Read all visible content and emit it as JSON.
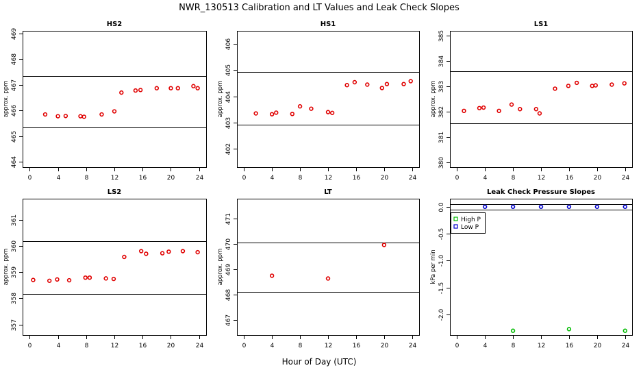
{
  "figure": {
    "title": "NWR_130513  Calibration and LT Values and Leak Check Slopes",
    "xlabel": "Hour of Day (UTC)"
  },
  "chart_data": [
    {
      "type": "scatter",
      "title": "HS2",
      "ylabel": "approx. ppm",
      "xlim": [
        -1,
        25
      ],
      "ylim": [
        463.8,
        469.1
      ],
      "xticks": [
        0,
        4,
        8,
        12,
        16,
        20,
        24
      ],
      "yticks": [
        464,
        465,
        466,
        467,
        468,
        469
      ],
      "ref_lines": [
        465.35,
        467.35
      ],
      "marker_color": "#e00000",
      "x": [
        2.2,
        4.0,
        5.1,
        7.2,
        7.7,
        10.2,
        12.0,
        13.0,
        15.0,
        15.7,
        18.0,
        20.0,
        21.0,
        23.2,
        23.8
      ],
      "y": [
        465.85,
        465.78,
        465.79,
        465.78,
        465.76,
        465.85,
        465.97,
        466.7,
        466.78,
        466.8,
        466.87,
        466.87,
        466.87,
        466.95,
        466.87
      ]
    },
    {
      "type": "scatter",
      "title": "HS1",
      "ylabel": "approx. ppm",
      "xlim": [
        -1,
        25
      ],
      "ylim": [
        401.3,
        406.5
      ],
      "xticks": [
        0,
        4,
        8,
        12,
        16,
        20,
        24
      ],
      "yticks": [
        402,
        403,
        404,
        405,
        406
      ],
      "ref_lines": [
        402.92,
        404.93
      ],
      "marker_color": "#e00000",
      "x": [
        1.7,
        4.0,
        4.6,
        6.9,
        8.0,
        9.6,
        12.0,
        12.6,
        14.7,
        15.8,
        17.6,
        19.7,
        20.4,
        22.8,
        23.8
      ],
      "y": [
        403.35,
        403.32,
        403.38,
        403.33,
        403.62,
        403.53,
        403.4,
        403.37,
        404.43,
        404.54,
        404.45,
        404.32,
        404.47,
        404.47,
        404.58
      ]
    },
    {
      "type": "scatter",
      "title": "LS1",
      "ylabel": "approx. ppm",
      "xlim": [
        -1,
        25
      ],
      "ylim": [
        379.8,
        385.2
      ],
      "xticks": [
        0,
        4,
        8,
        12,
        16,
        20,
        24
      ],
      "yticks": [
        380,
        381,
        382,
        383,
        384,
        385
      ],
      "ref_lines": [
        381.55,
        383.6
      ],
      "marker_color": "#e00000",
      "x": [
        1.0,
        3.2,
        3.8,
        6.0,
        7.8,
        9.0,
        11.3,
        11.8,
        14.0,
        15.9,
        17.1,
        19.3,
        19.8,
        22.1,
        23.9
      ],
      "y": [
        382.03,
        382.14,
        382.16,
        382.03,
        382.28,
        382.1,
        382.1,
        381.93,
        382.91,
        383.02,
        383.14,
        383.02,
        383.04,
        383.07,
        383.12
      ]
    },
    {
      "type": "scatter",
      "title": "LS2",
      "ylabel": "approx. ppm",
      "xlim": [
        -1,
        25
      ],
      "ylim": [
        356.6,
        361.8
      ],
      "xticks": [
        0,
        4,
        8,
        12,
        16,
        20,
        24
      ],
      "yticks": [
        357,
        358,
        359,
        360,
        361
      ],
      "ref_lines": [
        358.17,
        360.18
      ],
      "marker_color": "#e00000",
      "x": [
        0.5,
        2.8,
        3.9,
        5.6,
        7.9,
        8.5,
        10.8,
        11.9,
        13.4,
        15.8,
        16.5,
        18.8,
        19.7,
        21.7,
        23.8
      ],
      "y": [
        358.7,
        358.67,
        358.72,
        358.69,
        358.79,
        358.79,
        358.76,
        358.74,
        359.58,
        359.8,
        359.7,
        359.72,
        359.78,
        359.8,
        359.76
      ]
    },
    {
      "type": "scatter",
      "title": "LT",
      "ylabel": "approx. ppm",
      "xlim": [
        -1,
        25
      ],
      "ylim": [
        466.4,
        471.8
      ],
      "xticks": [
        0,
        4,
        8,
        12,
        16,
        20,
        24
      ],
      "yticks": [
        467,
        468,
        469,
        470,
        471
      ],
      "ref_lines": [
        468.1,
        470.07
      ],
      "marker_color": "#e00000",
      "x": [
        4.0,
        12.0,
        20.0
      ],
      "y": [
        468.75,
        468.64,
        469.97
      ]
    },
    {
      "type": "scatter",
      "title": "Leak Check Pressure Slopes",
      "ylabel": "kPa per min",
      "xlim": [
        -1,
        25
      ],
      "ylim": [
        -2.38,
        0.15
      ],
      "xticks": [
        0,
        4,
        8,
        12,
        16,
        20,
        24
      ],
      "yticks": [
        0.0,
        -0.5,
        -1.0,
        -1.5,
        -2.0
      ],
      "ytick_labels": [
        "0.0",
        "-0.5",
        "-1.0",
        "-1.5",
        "-2.0"
      ],
      "ref_lines": [
        0.05,
        -0.05
      ],
      "legend": {
        "position": "top-left"
      },
      "series": [
        {
          "name": "High P",
          "color": "#00bb00",
          "x": [
            8,
            16,
            24
          ],
          "y": [
            -2.3,
            -2.27,
            -2.3
          ]
        },
        {
          "name": "Low P",
          "color": "#0000cc",
          "x": [
            4,
            8,
            12,
            16,
            20,
            24
          ],
          "y": [
            0.0,
            0.0,
            0.0,
            0.0,
            0.0,
            0.0
          ]
        }
      ]
    }
  ]
}
